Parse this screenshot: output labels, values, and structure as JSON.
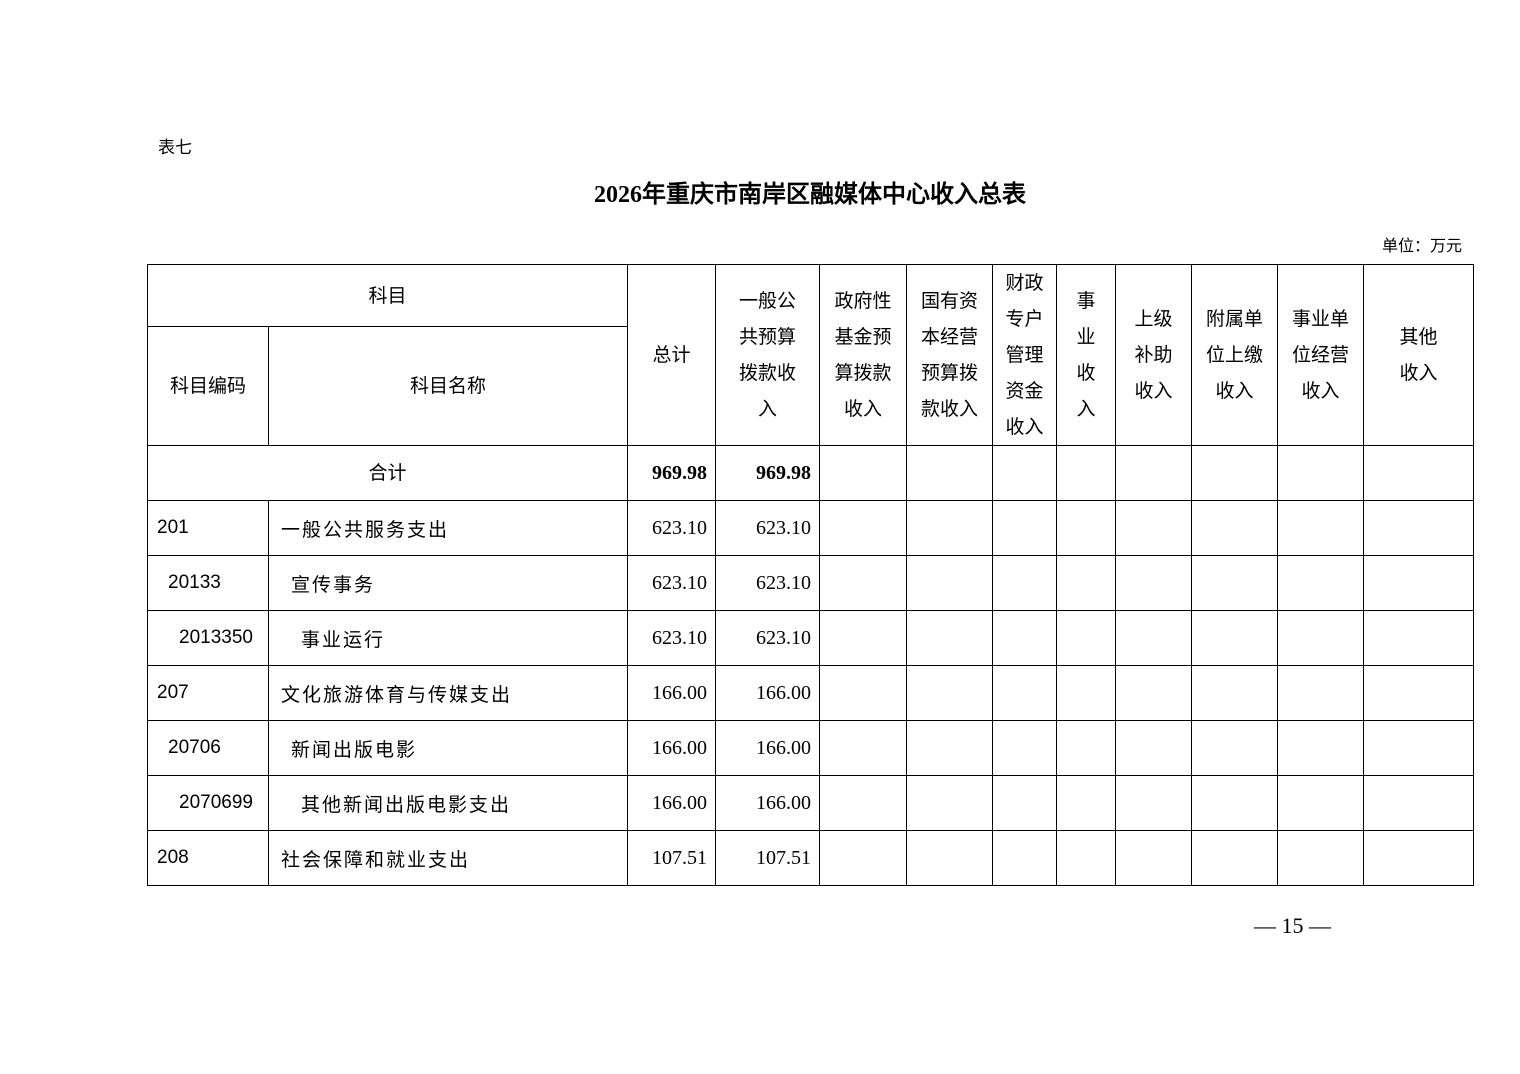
{
  "doc": {
    "label": "表七",
    "title": "2026年重庆市南岸区融媒体中心收入总表",
    "unit": "单位：万元",
    "page_number": "— 15 —"
  },
  "table": {
    "headers": {
      "subject": "科目",
      "code": "科目编码",
      "name": "科目名称",
      "total": "总计",
      "cols": [
        "一般公\n共预算\n拨款收\n入",
        "政府性\n基金预\n算拨款\n收入",
        "国有资\n本经营\n预算拨\n款收入",
        "财政\n专户\n管理\n资金\n收入",
        "事\n业\n收\n入",
        "上级\n补助\n收入",
        "附属单\n位上缴\n收入",
        "事业单\n位经营\n收入",
        "其他\n收入"
      ]
    },
    "total_row": {
      "label": "合计",
      "total": "969.98",
      "general": "969.98"
    },
    "rows": [
      {
        "code": "201",
        "name": "一般公共服务支出",
        "total": "623.10",
        "general": "623.10",
        "level": 0
      },
      {
        "code": "20133",
        "name": "宣传事务",
        "total": "623.10",
        "general": "623.10",
        "level": 1
      },
      {
        "code": "2013350",
        "name": "事业运行",
        "total": "623.10",
        "general": "623.10",
        "level": 2
      },
      {
        "code": "207",
        "name": "文化旅游体育与传媒支出",
        "total": "166.00",
        "general": "166.00",
        "level": 0
      },
      {
        "code": "20706",
        "name": "新闻出版电影",
        "total": "166.00",
        "general": "166.00",
        "level": 1
      },
      {
        "code": "2070699",
        "name": "其他新闻出版电影支出",
        "total": "166.00",
        "general": "166.00",
        "level": 2
      },
      {
        "code": "208",
        "name": "社会保障和就业支出",
        "total": "107.51",
        "general": "107.51",
        "level": 0
      }
    ]
  }
}
